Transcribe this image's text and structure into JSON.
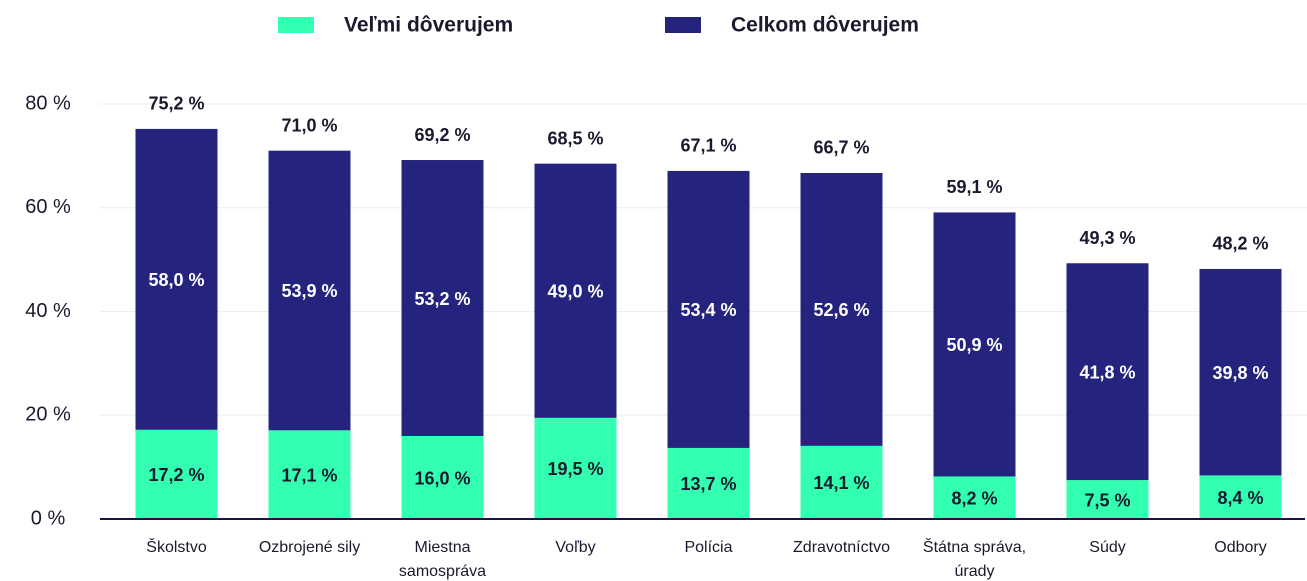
{
  "chart_data": {
    "type": "stacked_bar",
    "categories": [
      "Školstvo",
      "Ozbrojené sily",
      "Miestna samospráva",
      "Voľby",
      "Polícia",
      "Zdravotníctvo",
      "Štátna správa, úrady",
      "Súdy",
      "Odbory"
    ],
    "series": [
      {
        "name": "Veľmi dôverujem",
        "color": "#33ffb0",
        "values": [
          17.2,
          17.1,
          16.0,
          19.5,
          13.7,
          14.1,
          8.2,
          7.5,
          8.4
        ],
        "value_labels": [
          "17,2 %",
          "17,1 %",
          "16,0 %",
          "19,5 %",
          "13,7 %",
          "14,1 %",
          "8,2 %",
          "7,5 %",
          "8,4 %"
        ]
      },
      {
        "name": "Celkom dôverujem",
        "color": "#24247f",
        "values": [
          58.0,
          53.9,
          53.2,
          49.0,
          53.4,
          52.6,
          50.9,
          41.8,
          39.8
        ],
        "value_labels": [
          "58,0 %",
          "53,9 %",
          "53,2 %",
          "49,0 %",
          "53,4 %",
          "52,6 %",
          "50,9 %",
          "41,8 %",
          "39,8 %"
        ]
      }
    ],
    "totals": [
      75.2,
      71.0,
      69.2,
      68.5,
      67.1,
      66.7,
      59.1,
      49.3,
      48.2
    ],
    "totals_labels": [
      "75,2 %",
      "71,0 %",
      "69,2 %",
      "68,5 %",
      "67,1 %",
      "66,7 %",
      "59,1 %",
      "49,3 %",
      "48,2 %"
    ],
    "ylim": [
      0,
      80
    ],
    "yticks": [
      {
        "value": 0,
        "label": "0 %"
      },
      {
        "value": 20,
        "label": "20 %"
      },
      {
        "value": 40,
        "label": "40 %"
      },
      {
        "value": 60,
        "label": "60 %"
      },
      {
        "value": 80,
        "label": "80 %"
      }
    ],
    "grid": true,
    "legend": "top"
  }
}
